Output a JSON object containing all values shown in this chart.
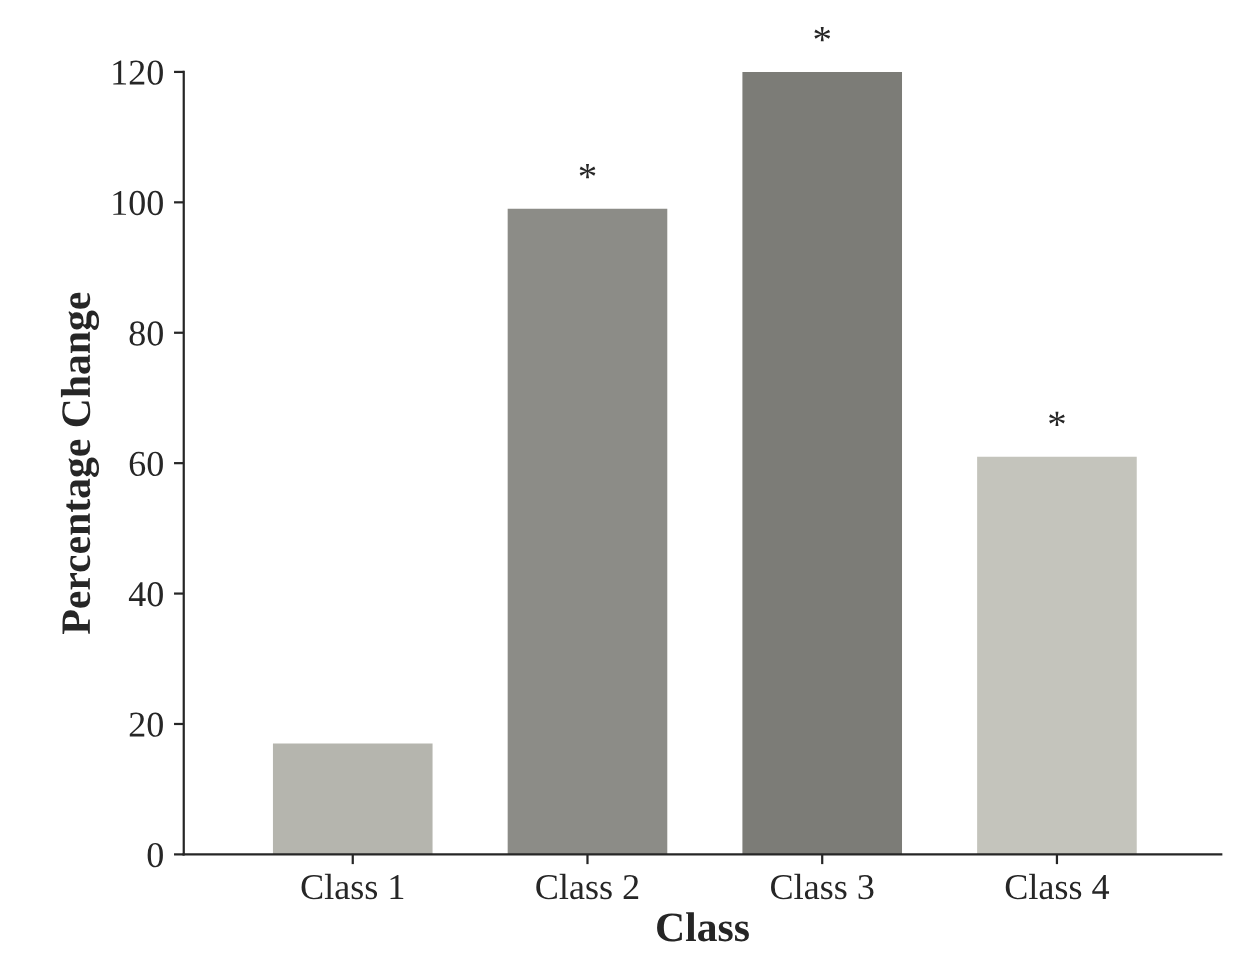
{
  "chart_data": {
    "type": "bar",
    "xlabel": "Class",
    "ylabel": "Percentage Change",
    "categories": [
      "Class 1",
      "Class 2",
      "Class 3",
      "Class 4"
    ],
    "values": [
      17,
      99,
      120,
      61
    ],
    "colors": [
      "#b5b5ae",
      "#8c8c87",
      "#7c7c77",
      "#c4c4bc"
    ],
    "ylim": [
      0,
      120
    ],
    "yticks": [
      0,
      20,
      40,
      60,
      80,
      100,
      120
    ],
    "grid": false,
    "annotations": [
      {
        "text": "*",
        "x": "Class 2",
        "y": 99
      },
      {
        "text": "*",
        "x": "Class 3",
        "y": 120
      },
      {
        "text": "*",
        "x": "Class 4",
        "y": 61
      }
    ]
  }
}
